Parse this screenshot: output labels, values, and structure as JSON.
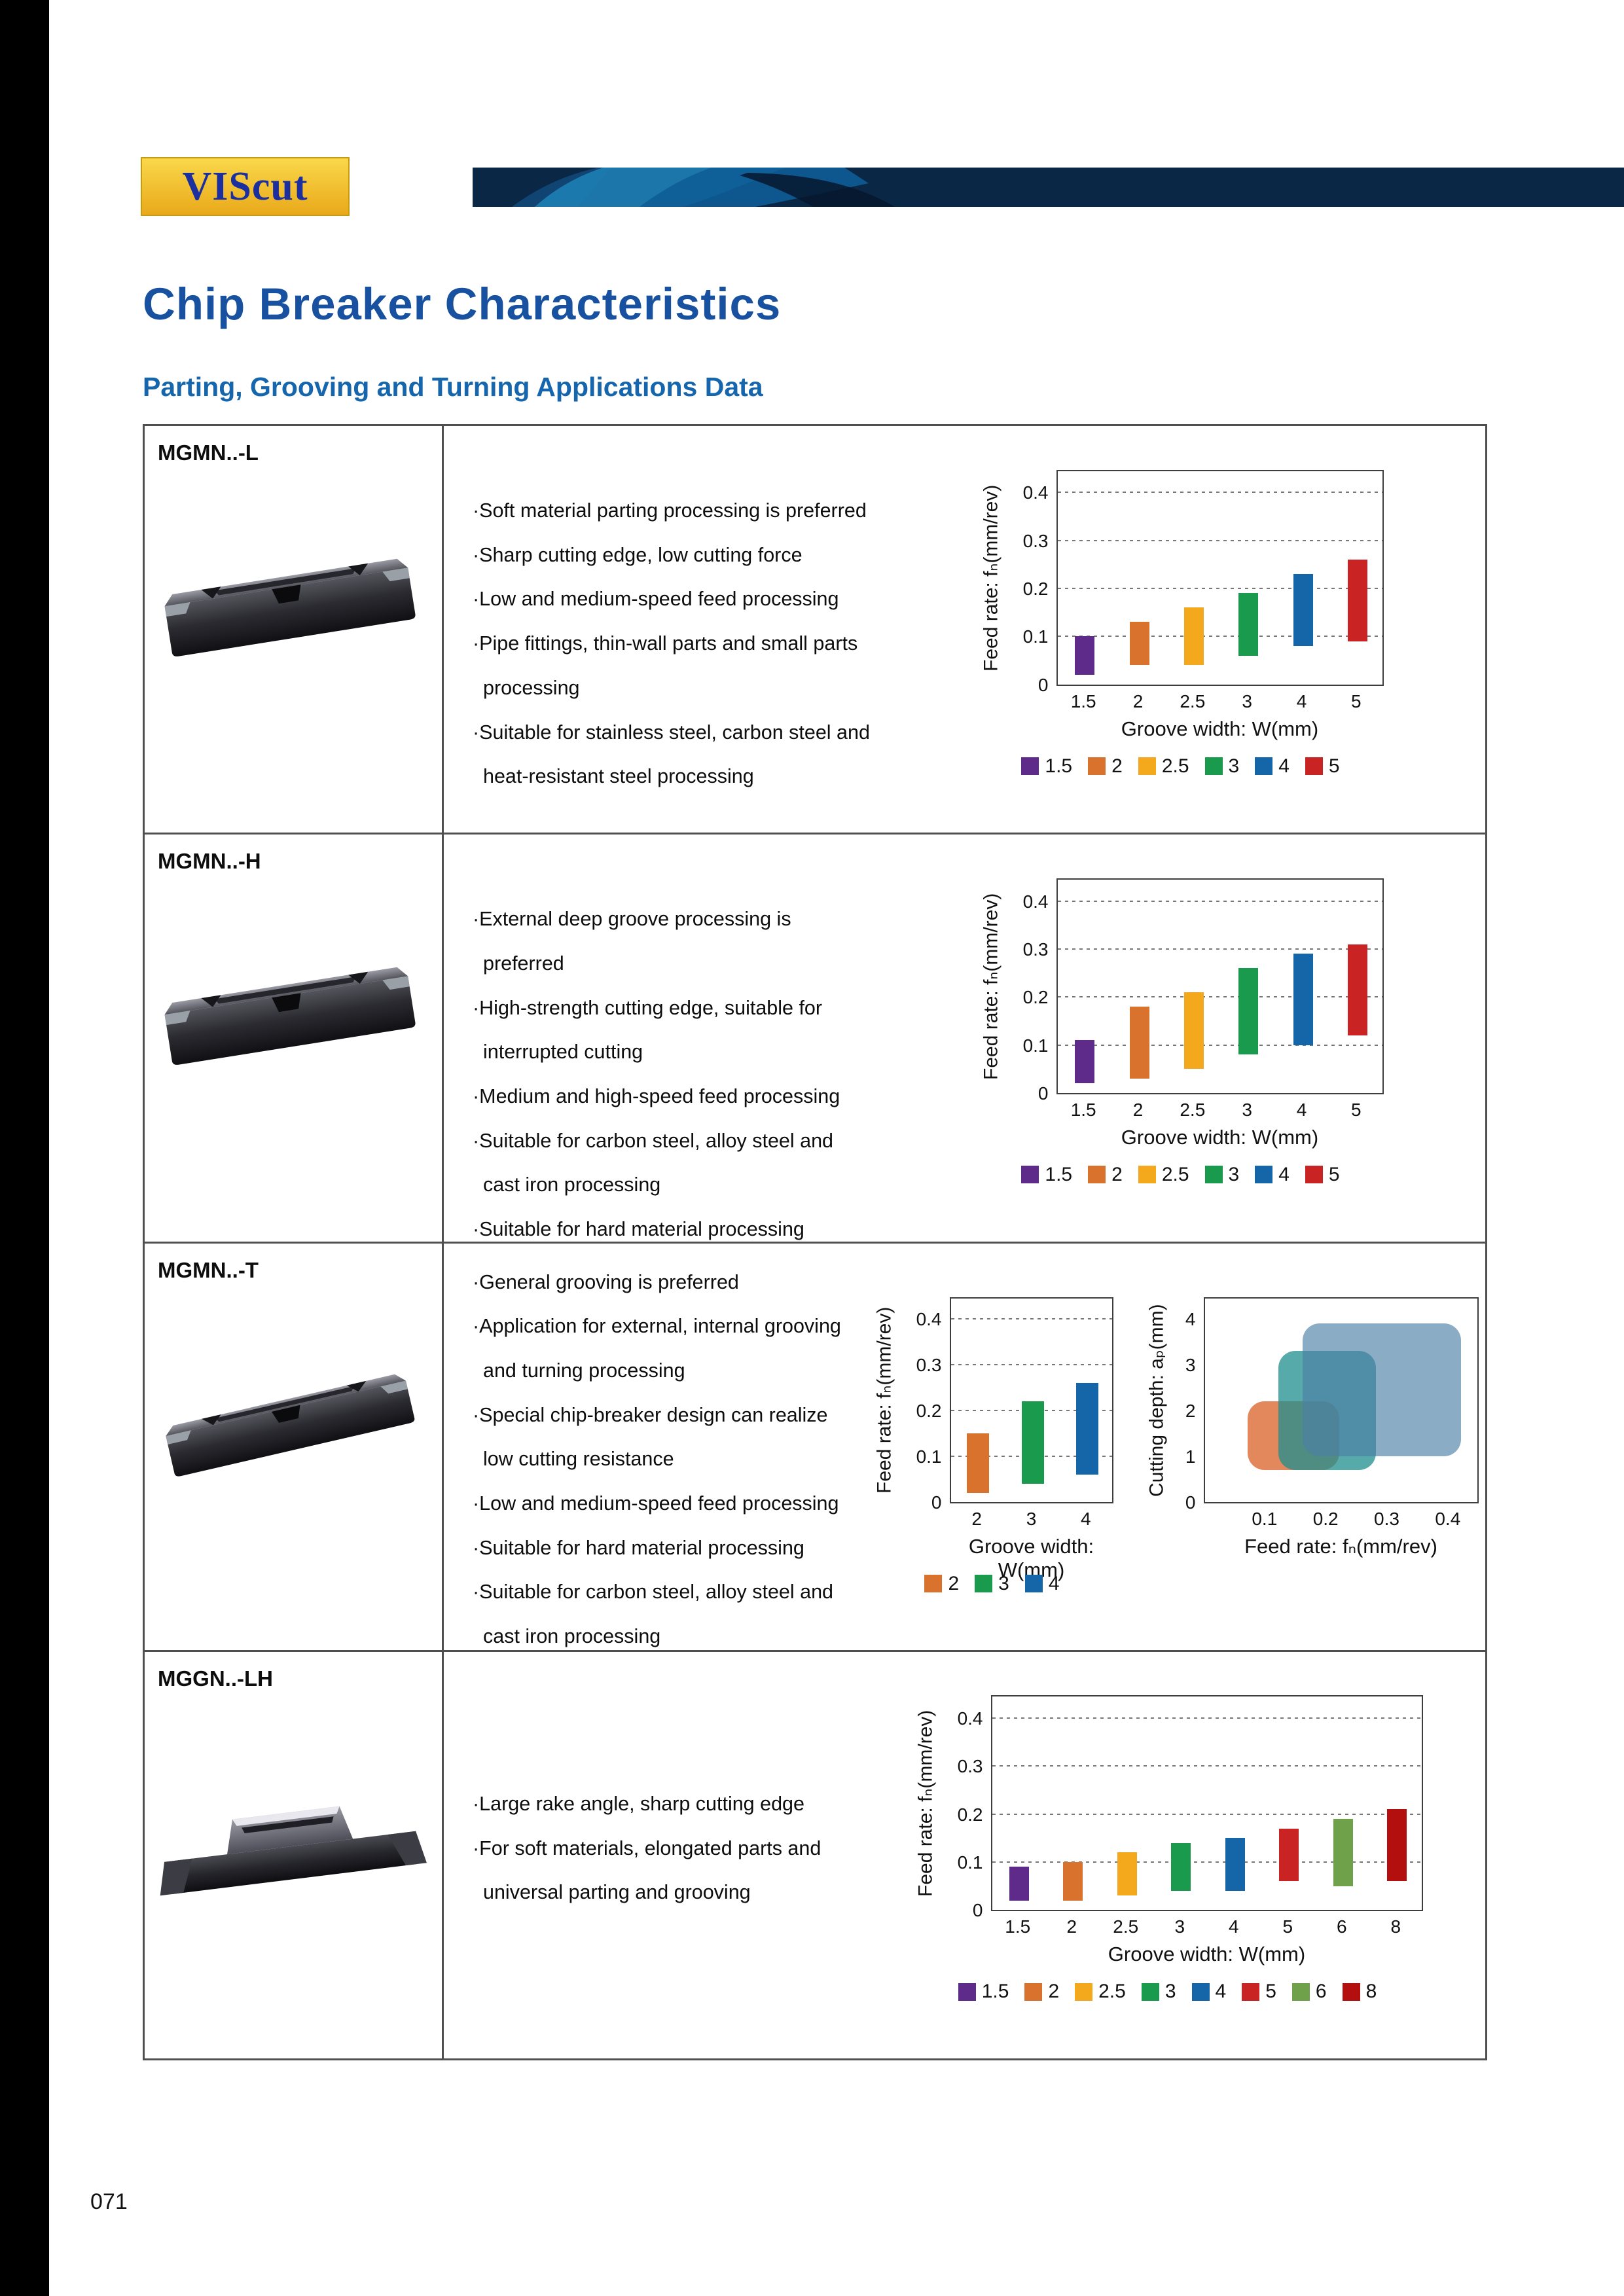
{
  "page": {
    "logo": "VIScut",
    "title": "Chip Breaker Characteristics",
    "subtitle": "Parting, Grooving and Turning Applications Data",
    "number": "071"
  },
  "colors": {
    "accent_blue": "#17519f",
    "subtitle_blue": "#1566ad",
    "logo_bg": "#f2c41d",
    "logo_text": "#1b2f9e",
    "banner_navy": "#0a2746",
    "table_border": "#4f4f4f",
    "bar_1_5": "#5e2b8a",
    "bar_2": "#d8722c",
    "bar_2_5": "#f4a81c",
    "bar_3": "#1a9a4c",
    "bar_4": "#1566a8",
    "bar_5": "#c92323",
    "bar_6": "#6fa04a",
    "bar_8": "#b40f0f"
  },
  "rows": [
    {
      "model": "MGMN..-L",
      "insert": "parting-insert",
      "bullets": [
        "·Soft material parting processing is preferred",
        "·Sharp cutting edge, low cutting force",
        "·Low and medium-speed feed processing",
        "·Pipe fittings, thin-wall parts and small parts processing",
        "·Suitable for stainless steel, carbon steel and heat-resistant steel processing"
      ],
      "charts": [
        {
          "type": "bar",
          "name": "feed-rate-chart",
          "ylabel": "Feed rate: fₙ(mm/rev)",
          "xlabel": "Groove width: W(mm)",
          "ymax": 0.45,
          "yticks": [
            0,
            0.1,
            0.2,
            0.3,
            0.4
          ],
          "categories": [
            "1.5",
            "2",
            "2.5",
            "3",
            "4",
            "5"
          ],
          "bars": [
            {
              "lo": 0.02,
              "hi": 0.1,
              "color": "#5e2b8a"
            },
            {
              "lo": 0.04,
              "hi": 0.13,
              "color": "#d8722c"
            },
            {
              "lo": 0.04,
              "hi": 0.16,
              "color": "#f4a81c"
            },
            {
              "lo": 0.06,
              "hi": 0.19,
              "color": "#1a9a4c"
            },
            {
              "lo": 0.08,
              "hi": 0.23,
              "color": "#1566a8"
            },
            {
              "lo": 0.09,
              "hi": 0.26,
              "color": "#c92323"
            }
          ],
          "legend": [
            {
              "label": "1.5",
              "color": "#5e2b8a"
            },
            {
              "label": "2",
              "color": "#d8722c"
            },
            {
              "label": "2.5",
              "color": "#f4a81c"
            },
            {
              "label": "3",
              "color": "#1a9a4c"
            },
            {
              "label": "4",
              "color": "#1566a8"
            },
            {
              "label": "5",
              "color": "#c92323"
            }
          ]
        }
      ]
    },
    {
      "model": "MGMN..-H",
      "insert": "parting-insert",
      "bullets": [
        "·External deep groove processing is preferred",
        "·High-strength cutting edge, suitable for interrupted cutting",
        "·Medium and high-speed feed processing",
        "·Suitable for carbon steel, alloy steel and cast iron processing",
        "·Suitable for hard material processing"
      ],
      "charts": [
        {
          "type": "bar",
          "name": "feed-rate-chart",
          "ylabel": "Feed rate: fₙ(mm/rev)",
          "xlabel": "Groove width: W(mm)",
          "ymax": 0.45,
          "yticks": [
            0,
            0.1,
            0.2,
            0.3,
            0.4
          ],
          "categories": [
            "1.5",
            "2",
            "2.5",
            "3",
            "4",
            "5"
          ],
          "bars": [
            {
              "lo": 0.02,
              "hi": 0.11,
              "color": "#5e2b8a"
            },
            {
              "lo": 0.03,
              "hi": 0.18,
              "color": "#d8722c"
            },
            {
              "lo": 0.05,
              "hi": 0.21,
              "color": "#f4a81c"
            },
            {
              "lo": 0.08,
              "hi": 0.26,
              "color": "#1a9a4c"
            },
            {
              "lo": 0.1,
              "hi": 0.29,
              "color": "#1566a8"
            },
            {
              "lo": 0.12,
              "hi": 0.31,
              "color": "#c92323"
            }
          ],
          "legend": [
            {
              "label": "1.5",
              "color": "#5e2b8a"
            },
            {
              "label": "2",
              "color": "#d8722c"
            },
            {
              "label": "2.5",
              "color": "#f4a81c"
            },
            {
              "label": "3",
              "color": "#1a9a4c"
            },
            {
              "label": "4",
              "color": "#1566a8"
            },
            {
              "label": "5",
              "color": "#c92323"
            }
          ]
        }
      ]
    },
    {
      "model": "MGMN..-T",
      "insert": "parting-insert-thin",
      "bullets": [
        "·General grooving is preferred",
        "·Application for external, internal grooving and turning processing",
        "·Special chip-breaker design can realize low cutting resistance",
        "·Low and medium-speed feed processing",
        "·Suitable for hard material processing",
        "·Suitable for carbon steel, alloy steel and cast iron processing"
      ],
      "charts": [
        {
          "type": "bar",
          "name": "feed-rate-chart",
          "ylabel": "Feed rate: fₙ(mm/rev)",
          "xlabel": "Groove width: W(mm)",
          "ymax": 0.45,
          "yticks": [
            0,
            0.1,
            0.2,
            0.3,
            0.4
          ],
          "categories": [
            "2",
            "3",
            "4"
          ],
          "bars": [
            {
              "lo": 0.02,
              "hi": 0.15,
              "color": "#d8722c"
            },
            {
              "lo": 0.04,
              "hi": 0.22,
              "color": "#1a9a4c"
            },
            {
              "lo": 0.06,
              "hi": 0.26,
              "color": "#1566a8"
            }
          ],
          "legend": [
            {
              "label": "2",
              "color": "#d8722c"
            },
            {
              "label": "3",
              "color": "#1a9a4c"
            },
            {
              "label": "4",
              "color": "#1566a8"
            }
          ]
        },
        {
          "type": "region",
          "name": "depth-feed-chart",
          "ylabel": "Cutting depth: aₚ(mm)",
          "xlabel": "Feed rate: fₙ(mm/rev)",
          "ymax": 4.5,
          "yticks": [
            0,
            1,
            2,
            3,
            4
          ],
          "xmax": 0.45,
          "xticks": [
            0.1,
            0.2,
            0.3,
            0.4
          ],
          "regions": [
            {
              "x0": 0.07,
              "x1": 0.22,
              "y0": 0.7,
              "y1": 2.2,
              "color": "#e07b4a",
              "alpha": 0.9
            },
            {
              "x0": 0.12,
              "x1": 0.28,
              "y0": 0.7,
              "y1": 3.3,
              "color": "#1d8d8d",
              "alpha": 0.75
            },
            {
              "x0": 0.16,
              "x1": 0.42,
              "y0": 1.0,
              "y1": 3.9,
              "color": "#4d7fa6",
              "alpha": 0.65
            }
          ]
        }
      ]
    },
    {
      "model": "MGGN..-LH",
      "insert": "grooving-blade-insert",
      "bullets": [
        "·Large rake angle, sharp cutting edge",
        "·For soft materials, elongated parts and universal parting and grooving"
      ],
      "charts": [
        {
          "type": "bar",
          "name": "feed-rate-chart",
          "ylabel": "Feed rate: fₙ(mm/rev)",
          "xlabel": "Groove width: W(mm)",
          "ymax": 0.45,
          "yticks": [
            0,
            0.1,
            0.2,
            0.3,
            0.4
          ],
          "categories": [
            "1.5",
            "2",
            "2.5",
            "3",
            "4",
            "5",
            "6",
            "8"
          ],
          "bars": [
            {
              "lo": 0.02,
              "hi": 0.09,
              "color": "#5e2b8a"
            },
            {
              "lo": 0.02,
              "hi": 0.1,
              "color": "#d8722c"
            },
            {
              "lo": 0.03,
              "hi": 0.12,
              "color": "#f4a81c"
            },
            {
              "lo": 0.04,
              "hi": 0.14,
              "color": "#1a9a4c"
            },
            {
              "lo": 0.04,
              "hi": 0.15,
              "color": "#1566a8"
            },
            {
              "lo": 0.06,
              "hi": 0.17,
              "color": "#c92323"
            },
            {
              "lo": 0.05,
              "hi": 0.19,
              "color": "#6fa04a"
            },
            {
              "lo": 0.06,
              "hi": 0.21,
              "color": "#b40f0f"
            }
          ],
          "legend": [
            {
              "label": "1.5",
              "color": "#5e2b8a"
            },
            {
              "label": "2",
              "color": "#d8722c"
            },
            {
              "label": "2.5",
              "color": "#f4a81c"
            },
            {
              "label": "3",
              "color": "#1a9a4c"
            },
            {
              "label": "4",
              "color": "#1566a8"
            },
            {
              "label": "5",
              "color": "#c92323"
            },
            {
              "label": "6",
              "color": "#6fa04a"
            },
            {
              "label": "8",
              "color": "#b40f0f"
            }
          ]
        }
      ]
    }
  ]
}
